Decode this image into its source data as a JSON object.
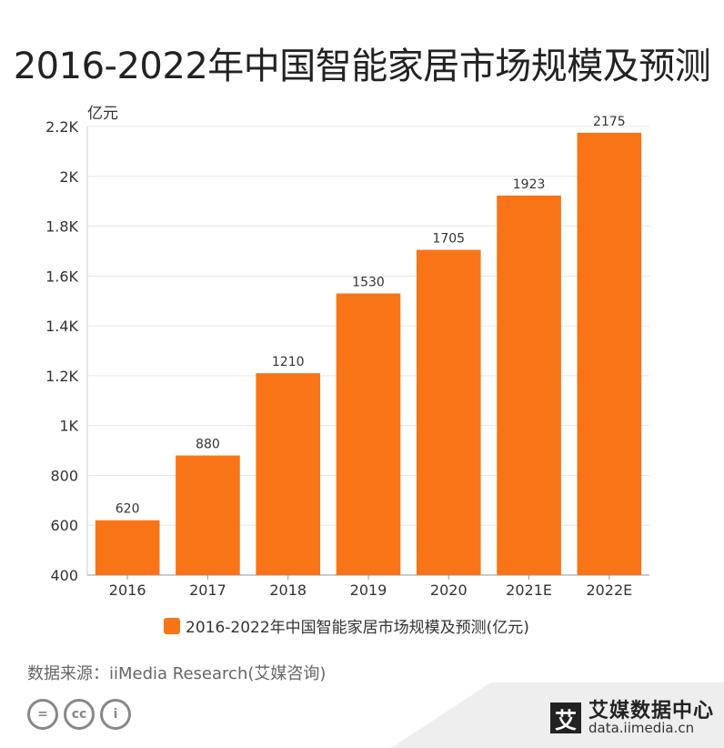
{
  "chart_data": {
    "type": "bar",
    "title": "2016-2022年中国智能家居市场规模及预测",
    "ylabel": "亿元",
    "categories": [
      "2016",
      "2017",
      "2018",
      "2019",
      "2020",
      "2021E",
      "2022E"
    ],
    "values": [
      620,
      880,
      1210,
      1530,
      1705,
      1923,
      2175
    ],
    "ylim": [
      400,
      2200
    ],
    "yticks": [
      400,
      600,
      800,
      1000,
      1200,
      1400,
      1600,
      1800,
      2000,
      2200
    ],
    "ytick_labels": [
      "400",
      "600",
      "800",
      "1K",
      "1.2K",
      "1.4K",
      "1.6K",
      "1.8K",
      "2K",
      "2.2K"
    ],
    "legend": "2016-2022年中国智能家居市场规模及预测(亿元)",
    "bar_color": "#F97417",
    "grid": true
  },
  "source": "数据来源：iiMedia Research(艾媒咨询)",
  "brand": {
    "logo": "艾",
    "name": "艾媒数据中心",
    "url": "data.iimedia.cn"
  },
  "license_icons": [
    "=",
    "cc",
    "i"
  ]
}
